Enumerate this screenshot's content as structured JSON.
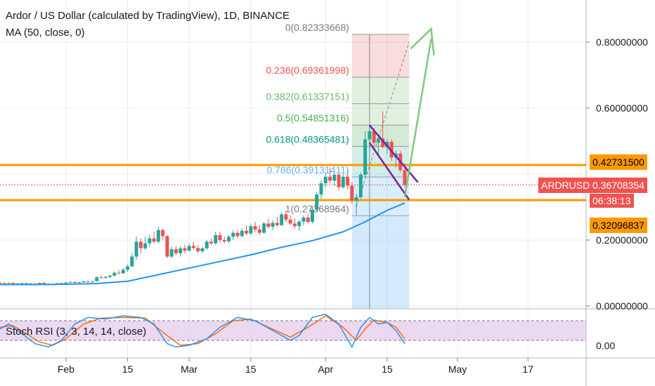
{
  "header": {
    "title": "Ardor / US Dollar (calculated by TradingView), 1D, BINANCE",
    "ma_label": "MA (50, close, 0)",
    "stoch_label": "Stoch RSI (3, 3, 14, 14, close)"
  },
  "colors": {
    "candle_up": "#26a69a",
    "candle_down": "#ef5350",
    "ma_line": "#2196f3",
    "orange_level": "#ff9800",
    "purple_channel": "#7b1fa2",
    "arrow_green": "#7dc97b",
    "stoch_k": "#2196f3",
    "stoch_d": "#ff6d00",
    "stoch_band": "#e1bee7",
    "symbol_badge": "#ef5350"
  },
  "price_axis": {
    "ticks": [
      "0.80000000",
      "0.60000000",
      "0.20000000",
      "0.00000000"
    ],
    "stoch_tick": "0.00"
  },
  "time_axis": {
    "ticks": [
      "Feb",
      "15",
      "Mar",
      "15",
      "Apr",
      "15",
      "May",
      "17"
    ]
  },
  "badges": {
    "level_upper": "0.42731500",
    "level_lower": "0.32096837",
    "symbol": "ARDRUSD",
    "last_price": "0.36708354",
    "countdown": "06:38:13"
  },
  "fib_labels": [
    "0(0.82333668)",
    "0.236(0.69361998)",
    "0.382(0.61337151)",
    "0.5(0.54851316)",
    "0.618(0.48365481)",
    "0.786(0.39131411)",
    "1(0.27368964)"
  ],
  "chart_data": {
    "type": "candlestick",
    "symbol": "ARDRUSD",
    "exchange": "BINANCE",
    "interval": "1D",
    "ylim": [
      0,
      0.9
    ],
    "x_range": [
      "2019-01-17",
      "2019-05-27"
    ],
    "scale": "linear",
    "grid": true,
    "levels": {
      "resistance": 0.427315,
      "support": 0.32096837,
      "last": 0.36708354
    },
    "fibonacci": [
      {
        "ratio": 0,
        "value": 0.82333668
      },
      {
        "ratio": 0.236,
        "value": 0.69361998
      },
      {
        "ratio": 0.382,
        "value": 0.61337151
      },
      {
        "ratio": 0.5,
        "value": 0.54851316
      },
      {
        "ratio": 0.618,
        "value": 0.48365481
      },
      {
        "ratio": 0.786,
        "value": 0.39131411
      },
      {
        "ratio": 1,
        "value": 0.27368964
      }
    ],
    "candles": [
      {
        "date": "2019-01-17",
        "o": 0.07,
        "h": 0.073,
        "l": 0.067,
        "c": 0.069
      },
      {
        "date": "2019-01-18",
        "o": 0.069,
        "h": 0.072,
        "l": 0.066,
        "c": 0.068
      },
      {
        "date": "2019-01-19",
        "o": 0.068,
        "h": 0.071,
        "l": 0.066,
        "c": 0.07
      },
      {
        "date": "2019-01-20",
        "o": 0.07,
        "h": 0.072,
        "l": 0.066,
        "c": 0.067
      },
      {
        "date": "2019-01-21",
        "o": 0.067,
        "h": 0.07,
        "l": 0.065,
        "c": 0.068
      },
      {
        "date": "2019-01-22",
        "o": 0.068,
        "h": 0.071,
        "l": 0.066,
        "c": 0.069
      },
      {
        "date": "2019-01-23",
        "o": 0.069,
        "h": 0.071,
        "l": 0.066,
        "c": 0.067
      },
      {
        "date": "2019-01-24",
        "o": 0.067,
        "h": 0.07,
        "l": 0.065,
        "c": 0.068
      },
      {
        "date": "2019-01-25",
        "o": 0.068,
        "h": 0.07,
        "l": 0.066,
        "c": 0.067
      },
      {
        "date": "2019-01-26",
        "o": 0.067,
        "h": 0.071,
        "l": 0.066,
        "c": 0.07
      },
      {
        "date": "2019-01-27",
        "o": 0.07,
        "h": 0.072,
        "l": 0.066,
        "c": 0.067
      },
      {
        "date": "2019-01-28",
        "o": 0.067,
        "h": 0.069,
        "l": 0.062,
        "c": 0.064
      },
      {
        "date": "2019-01-29",
        "o": 0.064,
        "h": 0.067,
        "l": 0.062,
        "c": 0.066
      },
      {
        "date": "2019-01-30",
        "o": 0.066,
        "h": 0.07,
        "l": 0.064,
        "c": 0.069
      },
      {
        "date": "2019-01-31",
        "o": 0.069,
        "h": 0.071,
        "l": 0.066,
        "c": 0.067
      },
      {
        "date": "2019-02-01",
        "o": 0.067,
        "h": 0.072,
        "l": 0.066,
        "c": 0.071
      },
      {
        "date": "2019-02-02",
        "o": 0.071,
        "h": 0.075,
        "l": 0.069,
        "c": 0.073
      },
      {
        "date": "2019-02-03",
        "o": 0.073,
        "h": 0.074,
        "l": 0.068,
        "c": 0.07
      },
      {
        "date": "2019-02-04",
        "o": 0.07,
        "h": 0.073,
        "l": 0.068,
        "c": 0.072
      },
      {
        "date": "2019-02-05",
        "o": 0.072,
        "h": 0.076,
        "l": 0.07,
        "c": 0.075
      },
      {
        "date": "2019-02-06",
        "o": 0.075,
        "h": 0.077,
        "l": 0.071,
        "c": 0.073
      },
      {
        "date": "2019-02-07",
        "o": 0.073,
        "h": 0.076,
        "l": 0.071,
        "c": 0.075
      },
      {
        "date": "2019-02-08",
        "o": 0.075,
        "h": 0.09,
        "l": 0.074,
        "c": 0.087
      },
      {
        "date": "2019-02-09",
        "o": 0.087,
        "h": 0.092,
        "l": 0.082,
        "c": 0.085
      },
      {
        "date": "2019-02-10",
        "o": 0.085,
        "h": 0.09,
        "l": 0.082,
        "c": 0.088
      },
      {
        "date": "2019-02-11",
        "o": 0.088,
        "h": 0.095,
        "l": 0.085,
        "c": 0.092
      },
      {
        "date": "2019-02-12",
        "o": 0.092,
        "h": 0.105,
        "l": 0.09,
        "c": 0.101
      },
      {
        "date": "2019-02-13",
        "o": 0.101,
        "h": 0.11,
        "l": 0.096,
        "c": 0.099
      },
      {
        "date": "2019-02-14",
        "o": 0.099,
        "h": 0.115,
        "l": 0.097,
        "c": 0.11
      },
      {
        "date": "2019-02-15",
        "o": 0.11,
        "h": 0.125,
        "l": 0.104,
        "c": 0.12
      },
      {
        "date": "2019-02-16",
        "o": 0.12,
        "h": 0.16,
        "l": 0.118,
        "c": 0.15
      },
      {
        "date": "2019-02-17",
        "o": 0.15,
        "h": 0.21,
        "l": 0.14,
        "c": 0.195
      },
      {
        "date": "2019-02-18",
        "o": 0.195,
        "h": 0.205,
        "l": 0.16,
        "c": 0.175
      },
      {
        "date": "2019-02-19",
        "o": 0.175,
        "h": 0.21,
        "l": 0.17,
        "c": 0.19
      },
      {
        "date": "2019-02-20",
        "o": 0.19,
        "h": 0.215,
        "l": 0.178,
        "c": 0.205
      },
      {
        "date": "2019-02-21",
        "o": 0.205,
        "h": 0.225,
        "l": 0.19,
        "c": 0.195
      },
      {
        "date": "2019-02-22",
        "o": 0.195,
        "h": 0.24,
        "l": 0.19,
        "c": 0.23
      },
      {
        "date": "2019-02-23",
        "o": 0.23,
        "h": 0.235,
        "l": 0.2,
        "c": 0.212
      },
      {
        "date": "2019-02-24",
        "o": 0.212,
        "h": 0.215,
        "l": 0.145,
        "c": 0.15
      },
      {
        "date": "2019-02-25",
        "o": 0.15,
        "h": 0.18,
        "l": 0.145,
        "c": 0.172
      },
      {
        "date": "2019-02-26",
        "o": 0.172,
        "h": 0.18,
        "l": 0.155,
        "c": 0.16
      },
      {
        "date": "2019-02-27",
        "o": 0.16,
        "h": 0.182,
        "l": 0.15,
        "c": 0.175
      },
      {
        "date": "2019-02-28",
        "o": 0.175,
        "h": 0.185,
        "l": 0.16,
        "c": 0.168
      },
      {
        "date": "2019-03-01",
        "o": 0.168,
        "h": 0.19,
        "l": 0.165,
        "c": 0.182
      },
      {
        "date": "2019-03-02",
        "o": 0.182,
        "h": 0.195,
        "l": 0.17,
        "c": 0.176
      },
      {
        "date": "2019-03-03",
        "o": 0.176,
        "h": 0.185,
        "l": 0.16,
        "c": 0.166
      },
      {
        "date": "2019-03-04",
        "o": 0.166,
        "h": 0.18,
        "l": 0.16,
        "c": 0.175
      },
      {
        "date": "2019-03-05",
        "o": 0.175,
        "h": 0.2,
        "l": 0.17,
        "c": 0.195
      },
      {
        "date": "2019-03-06",
        "o": 0.195,
        "h": 0.205,
        "l": 0.185,
        "c": 0.19
      },
      {
        "date": "2019-03-07",
        "o": 0.19,
        "h": 0.225,
        "l": 0.185,
        "c": 0.215
      },
      {
        "date": "2019-03-08",
        "o": 0.215,
        "h": 0.225,
        "l": 0.192,
        "c": 0.2
      },
      {
        "date": "2019-03-09",
        "o": 0.2,
        "h": 0.21,
        "l": 0.19,
        "c": 0.196
      },
      {
        "date": "2019-03-10",
        "o": 0.196,
        "h": 0.215,
        "l": 0.19,
        "c": 0.21
      },
      {
        "date": "2019-03-11",
        "o": 0.21,
        "h": 0.23,
        "l": 0.2,
        "c": 0.222
      },
      {
        "date": "2019-03-12",
        "o": 0.222,
        "h": 0.23,
        "l": 0.205,
        "c": 0.212
      },
      {
        "date": "2019-03-13",
        "o": 0.212,
        "h": 0.235,
        "l": 0.208,
        "c": 0.228
      },
      {
        "date": "2019-03-14",
        "o": 0.228,
        "h": 0.245,
        "l": 0.215,
        "c": 0.22
      },
      {
        "date": "2019-03-15",
        "o": 0.22,
        "h": 0.25,
        "l": 0.215,
        "c": 0.242
      },
      {
        "date": "2019-03-16",
        "o": 0.242,
        "h": 0.255,
        "l": 0.225,
        "c": 0.232
      },
      {
        "date": "2019-03-17",
        "o": 0.232,
        "h": 0.245,
        "l": 0.215,
        "c": 0.222
      },
      {
        "date": "2019-03-18",
        "o": 0.222,
        "h": 0.255,
        "l": 0.22,
        "c": 0.25
      },
      {
        "date": "2019-03-19",
        "o": 0.25,
        "h": 0.265,
        "l": 0.235,
        "c": 0.24
      },
      {
        "date": "2019-03-20",
        "o": 0.24,
        "h": 0.26,
        "l": 0.23,
        "c": 0.252
      },
      {
        "date": "2019-03-21",
        "o": 0.252,
        "h": 0.27,
        "l": 0.24,
        "c": 0.245
      },
      {
        "date": "2019-03-22",
        "o": 0.245,
        "h": 0.285,
        "l": 0.242,
        "c": 0.278
      },
      {
        "date": "2019-03-23",
        "o": 0.278,
        "h": 0.29,
        "l": 0.255,
        "c": 0.262
      },
      {
        "date": "2019-03-24",
        "o": 0.262,
        "h": 0.275,
        "l": 0.245,
        "c": 0.25
      },
      {
        "date": "2019-03-25",
        "o": 0.25,
        "h": 0.265,
        "l": 0.235,
        "c": 0.242
      },
      {
        "date": "2019-03-26",
        "o": 0.242,
        "h": 0.26,
        "l": 0.228,
        "c": 0.256
      },
      {
        "date": "2019-03-27",
        "o": 0.256,
        "h": 0.275,
        "l": 0.245,
        "c": 0.268
      },
      {
        "date": "2019-03-28",
        "o": 0.268,
        "h": 0.28,
        "l": 0.25,
        "c": 0.255
      },
      {
        "date": "2019-03-29",
        "o": 0.255,
        "h": 0.3,
        "l": 0.25,
        "c": 0.292
      },
      {
        "date": "2019-03-30",
        "o": 0.292,
        "h": 0.345,
        "l": 0.285,
        "c": 0.338
      },
      {
        "date": "2019-03-31",
        "o": 0.338,
        "h": 0.38,
        "l": 0.325,
        "c": 0.372
      },
      {
        "date": "2019-04-01",
        "o": 0.372,
        "h": 0.405,
        "l": 0.36,
        "c": 0.392
      },
      {
        "date": "2019-04-02",
        "o": 0.392,
        "h": 0.42,
        "l": 0.372,
        "c": 0.38
      },
      {
        "date": "2019-04-03",
        "o": 0.38,
        "h": 0.405,
        "l": 0.365,
        "c": 0.398
      },
      {
        "date": "2019-04-04",
        "o": 0.398,
        "h": 0.41,
        "l": 0.35,
        "c": 0.36
      },
      {
        "date": "2019-04-05",
        "o": 0.36,
        "h": 0.4,
        "l": 0.355,
        "c": 0.392
      },
      {
        "date": "2019-04-06",
        "o": 0.392,
        "h": 0.412,
        "l": 0.355,
        "c": 0.365
      },
      {
        "date": "2019-04-07",
        "o": 0.365,
        "h": 0.375,
        "l": 0.31,
        "c": 0.32
      },
      {
        "date": "2019-04-08",
        "o": 0.32,
        "h": 0.34,
        "l": 0.274,
        "c": 0.33
      },
      {
        "date": "2019-04-09",
        "o": 0.33,
        "h": 0.405,
        "l": 0.325,
        "c": 0.398
      },
      {
        "date": "2019-04-10",
        "o": 0.398,
        "h": 0.53,
        "l": 0.39,
        "c": 0.505
      },
      {
        "date": "2019-04-11",
        "o": 0.505,
        "h": 0.545,
        "l": 0.47,
        "c": 0.53
      },
      {
        "date": "2019-04-12",
        "o": 0.53,
        "h": 0.54,
        "l": 0.48,
        "c": 0.495
      },
      {
        "date": "2019-04-13",
        "o": 0.495,
        "h": 0.52,
        "l": 0.46,
        "c": 0.508
      },
      {
        "date": "2019-04-14",
        "o": 0.508,
        "h": 0.59,
        "l": 0.478,
        "c": 0.482
      },
      {
        "date": "2019-04-15",
        "o": 0.482,
        "h": 0.505,
        "l": 0.462,
        "c": 0.498
      },
      {
        "date": "2019-04-16",
        "o": 0.498,
        "h": 0.505,
        "l": 0.44,
        "c": 0.45
      },
      {
        "date": "2019-04-17",
        "o": 0.45,
        "h": 0.472,
        "l": 0.42,
        "c": 0.462
      },
      {
        "date": "2019-04-18",
        "o": 0.462,
        "h": 0.47,
        "l": 0.405,
        "c": 0.412
      },
      {
        "date": "2019-04-19",
        "o": 0.412,
        "h": 0.432,
        "l": 0.36,
        "c": 0.367
      }
    ],
    "ma50": [
      {
        "date": "2019-01-17",
        "v": 0.065
      },
      {
        "date": "2019-01-25",
        "v": 0.065
      },
      {
        "date": "2019-02-01",
        "v": 0.066
      },
      {
        "date": "2019-02-08",
        "v": 0.068
      },
      {
        "date": "2019-02-15",
        "v": 0.075
      },
      {
        "date": "2019-02-22",
        "v": 0.095
      },
      {
        "date": "2019-03-01",
        "v": 0.115
      },
      {
        "date": "2019-03-08",
        "v": 0.135
      },
      {
        "date": "2019-03-15",
        "v": 0.155
      },
      {
        "date": "2019-03-22",
        "v": 0.178
      },
      {
        "date": "2019-03-29",
        "v": 0.198
      },
      {
        "date": "2019-04-05",
        "v": 0.225
      },
      {
        "date": "2019-04-10",
        "v": 0.255
      },
      {
        "date": "2019-04-15",
        "v": 0.29
      },
      {
        "date": "2019-04-19",
        "v": 0.312
      }
    ],
    "stoch_rsi": {
      "params": "3, 3, 14, 14, close",
      "upper_band": 80,
      "lower_band": 20,
      "k": [
        {
          "date": "2019-01-17",
          "v": 55
        },
        {
          "date": "2019-01-19",
          "v": 70
        },
        {
          "date": "2019-01-21",
          "v": 50
        },
        {
          "date": "2019-01-23",
          "v": 30
        },
        {
          "date": "2019-01-25",
          "v": 10
        },
        {
          "date": "2019-01-28",
          "v": 0
        },
        {
          "date": "2019-01-31",
          "v": 20
        },
        {
          "date": "2019-02-03",
          "v": 70
        },
        {
          "date": "2019-02-06",
          "v": 90
        },
        {
          "date": "2019-02-10",
          "v": 85
        },
        {
          "date": "2019-02-14",
          "v": 95
        },
        {
          "date": "2019-02-18",
          "v": 90
        },
        {
          "date": "2019-02-21",
          "v": 70
        },
        {
          "date": "2019-02-24",
          "v": 10
        },
        {
          "date": "2019-02-26",
          "v": 0
        },
        {
          "date": "2019-03-01",
          "v": 5
        },
        {
          "date": "2019-03-05",
          "v": 25
        },
        {
          "date": "2019-03-08",
          "v": 60
        },
        {
          "date": "2019-03-12",
          "v": 90
        },
        {
          "date": "2019-03-16",
          "v": 80
        },
        {
          "date": "2019-03-20",
          "v": 50
        },
        {
          "date": "2019-03-24",
          "v": 20
        },
        {
          "date": "2019-03-26",
          "v": 35
        },
        {
          "date": "2019-03-29",
          "v": 90
        },
        {
          "date": "2019-04-01",
          "v": 100
        },
        {
          "date": "2019-04-04",
          "v": 70
        },
        {
          "date": "2019-04-07",
          "v": 0
        },
        {
          "date": "2019-04-09",
          "v": 60
        },
        {
          "date": "2019-04-11",
          "v": 90
        },
        {
          "date": "2019-04-13",
          "v": 70
        },
        {
          "date": "2019-04-15",
          "v": 75
        },
        {
          "date": "2019-04-17",
          "v": 50
        },
        {
          "date": "2019-04-19",
          "v": 10
        }
      ],
      "d": [
        {
          "date": "2019-01-17",
          "v": 60
        },
        {
          "date": "2019-01-20",
          "v": 65
        },
        {
          "date": "2019-01-23",
          "v": 40
        },
        {
          "date": "2019-01-26",
          "v": 15
        },
        {
          "date": "2019-01-29",
          "v": 5
        },
        {
          "date": "2019-02-01",
          "v": 25
        },
        {
          "date": "2019-02-05",
          "v": 70
        },
        {
          "date": "2019-02-09",
          "v": 88
        },
        {
          "date": "2019-02-14",
          "v": 90
        },
        {
          "date": "2019-02-19",
          "v": 88
        },
        {
          "date": "2019-02-23",
          "v": 45
        },
        {
          "date": "2019-02-27",
          "v": 5
        },
        {
          "date": "2019-03-03",
          "v": 10
        },
        {
          "date": "2019-03-07",
          "v": 40
        },
        {
          "date": "2019-03-11",
          "v": 80
        },
        {
          "date": "2019-03-15",
          "v": 85
        },
        {
          "date": "2019-03-19",
          "v": 60
        },
        {
          "date": "2019-03-24",
          "v": 30
        },
        {
          "date": "2019-03-28",
          "v": 60
        },
        {
          "date": "2019-04-01",
          "v": 95
        },
        {
          "date": "2019-04-05",
          "v": 60
        },
        {
          "date": "2019-04-08",
          "v": 20
        },
        {
          "date": "2019-04-10",
          "v": 55
        },
        {
          "date": "2019-04-12",
          "v": 82
        },
        {
          "date": "2019-04-15",
          "v": 75
        },
        {
          "date": "2019-04-17",
          "v": 60
        },
        {
          "date": "2019-04-19",
          "v": 25
        }
      ],
      "ylim": [
        0,
        100
      ]
    }
  }
}
